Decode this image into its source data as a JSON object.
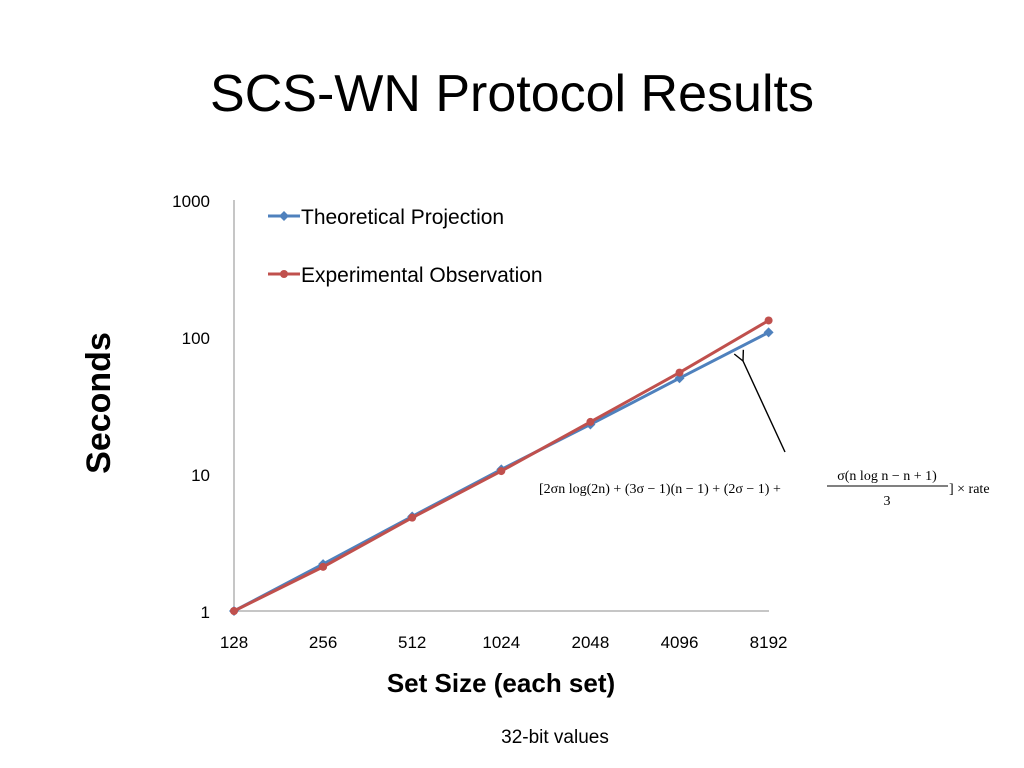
{
  "slide": {
    "title": "SCS-WN Protocol Results",
    "footnote": "32-bit values"
  },
  "chart_data": {
    "type": "line",
    "title": "",
    "xlabel": "Set Size (each set)",
    "ylabel": "Seconds",
    "y_scale": "log",
    "ylim": [
      1,
      1000
    ],
    "y_ticks": [
      "1",
      "10",
      "100",
      "1000"
    ],
    "categories": [
      "128",
      "256",
      "512",
      "1024",
      "2048",
      "4096",
      "8192"
    ],
    "series": [
      {
        "name": "Theoretical Projection",
        "color": "#4F81BD",
        "marker": "diamond",
        "values": [
          1.0,
          2.2,
          4.9,
          10.8,
          23.0,
          50.0,
          108.0
        ]
      },
      {
        "name": "Experimental Observation",
        "color": "#C0504D",
        "marker": "circle",
        "values": [
          1.0,
          2.1,
          4.8,
          10.5,
          24.0,
          55.0,
          132.0
        ]
      }
    ],
    "legend_position": "top-left",
    "grid": false,
    "annotation": {
      "formula": "[2σn log(2n) + (3σ − 1)(n − 1) + (2σ − 1) +",
      "fraction_numerator": "σ(n log n − n + 1)",
      "fraction_denominator": "3",
      "formula_tail": "] × rate",
      "points_to": "Theoretical Projection"
    }
  }
}
